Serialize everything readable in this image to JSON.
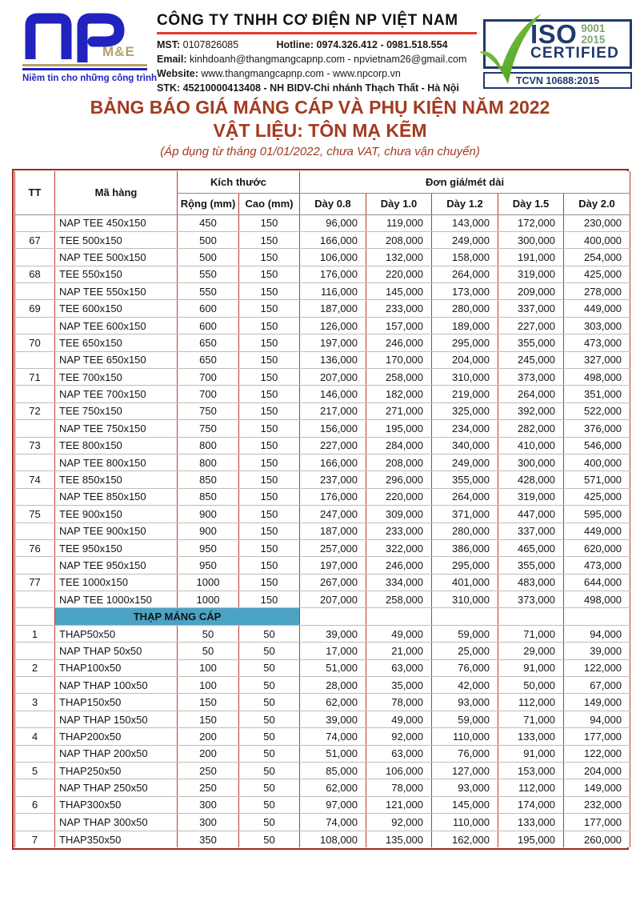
{
  "logo": {
    "monogram": "NP",
    "sub": "M&E",
    "slogan": "Niềm tin cho những công trình"
  },
  "company": {
    "name": "CÔNG TY TNHH CƠ ĐIỆN NP VIỆT NAM",
    "mst_label": "MST:",
    "mst_value": "0107826085",
    "hotline_label": "Hotline:",
    "hotline_value": "0974.326.412 - 0981.518.554",
    "email_label": "Email:",
    "email_value": "kinhdoanh@thangmangcapnp.com - npvietnam26@gmail.com",
    "website_label": "Website:",
    "website_value": "www.thangmangcapnp.com - www.npcorp.vn",
    "stk_label": "STK:",
    "stk_value": "45210000413408 - NH BIDV-Chi nhánh Thạch Thất - Hà Nội"
  },
  "iso_badge": {
    "iso": "ISO",
    "standard": "9001",
    "year": "2015",
    "certified": "CERTIFIED",
    "tcvn": "TCVN 10688:2015"
  },
  "title": {
    "line1": "BẢNG BÁO GIÁ MÁNG CÁP VÀ PHỤ KIỆN NĂM 2022",
    "line2": "VẬT LIỆU: TÔN MẠ KẼM",
    "note": "(Áp dụng từ tháng 01/01/2022, chưa VAT, chưa vận chuyển)"
  },
  "table": {
    "headers": {
      "tt": "TT",
      "code": "Mã hàng",
      "size_group": "Kích thước",
      "width": "Rộng (mm)",
      "height": "Cao (mm)",
      "price_group": "Đơn giá/mét dài",
      "thickness": [
        "Dày 0.8",
        "Dày 1.0",
        "Dày 1.2",
        "Dày 1.5",
        "Dày 2.0"
      ]
    },
    "rows": [
      [
        "",
        "NAP TEE 450x150",
        "450",
        "150",
        "96,000",
        "119,000",
        "143,000",
        "172,000",
        "230,000"
      ],
      [
        "67",
        "TEE 500x150",
        "500",
        "150",
        "166,000",
        "208,000",
        "249,000",
        "300,000",
        "400,000"
      ],
      [
        "",
        "NAP TEE 500x150",
        "500",
        "150",
        "106,000",
        "132,000",
        "158,000",
        "191,000",
        "254,000"
      ],
      [
        "68",
        "TEE 550x150",
        "550",
        "150",
        "176,000",
        "220,000",
        "264,000",
        "319,000",
        "425,000"
      ],
      [
        "",
        "NAP TEE 550x150",
        "550",
        "150",
        "116,000",
        "145,000",
        "173,000",
        "209,000",
        "278,000"
      ],
      [
        "69",
        "TEE 600x150",
        "600",
        "150",
        "187,000",
        "233,000",
        "280,000",
        "337,000",
        "449,000"
      ],
      [
        "",
        "NAP TEE 600x150",
        "600",
        "150",
        "126,000",
        "157,000",
        "189,000",
        "227,000",
        "303,000"
      ],
      [
        "70",
        "TEE 650x150",
        "650",
        "150",
        "197,000",
        "246,000",
        "295,000",
        "355,000",
        "473,000"
      ],
      [
        "",
        "NAP TEE 650x150",
        "650",
        "150",
        "136,000",
        "170,000",
        "204,000",
        "245,000",
        "327,000"
      ],
      [
        "71",
        "TEE 700x150",
        "700",
        "150",
        "207,000",
        "258,000",
        "310,000",
        "373,000",
        "498,000"
      ],
      [
        "",
        "NAP TEE 700x150",
        "700",
        "150",
        "146,000",
        "182,000",
        "219,000",
        "264,000",
        "351,000"
      ],
      [
        "72",
        "TEE 750x150",
        "750",
        "150",
        "217,000",
        "271,000",
        "325,000",
        "392,000",
        "522,000"
      ],
      [
        "",
        "NAP TEE 750x150",
        "750",
        "150",
        "156,000",
        "195,000",
        "234,000",
        "282,000",
        "376,000"
      ],
      [
        "73",
        "TEE 800x150",
        "800",
        "150",
        "227,000",
        "284,000",
        "340,000",
        "410,000",
        "546,000"
      ],
      [
        "",
        "NAP TEE 800x150",
        "800",
        "150",
        "166,000",
        "208,000",
        "249,000",
        "300,000",
        "400,000"
      ],
      [
        "74",
        "TEE 850x150",
        "850",
        "150",
        "237,000",
        "296,000",
        "355,000",
        "428,000",
        "571,000"
      ],
      [
        "",
        "NAP TEE 850x150",
        "850",
        "150",
        "176,000",
        "220,000",
        "264,000",
        "319,000",
        "425,000"
      ],
      [
        "75",
        "TEE 900x150",
        "900",
        "150",
        "247,000",
        "309,000",
        "371,000",
        "447,000",
        "595,000"
      ],
      [
        "",
        "NAP TEE 900x150",
        "900",
        "150",
        "187,000",
        "233,000",
        "280,000",
        "337,000",
        "449,000"
      ],
      [
        "76",
        "TEE 950x150",
        "950",
        "150",
        "257,000",
        "322,000",
        "386,000",
        "465,000",
        "620,000"
      ],
      [
        "",
        "NAP TEE 950x150",
        "950",
        "150",
        "197,000",
        "246,000",
        "295,000",
        "355,000",
        "473,000"
      ],
      [
        "77",
        "TEE 1000x150",
        "1000",
        "150",
        "267,000",
        "334,000",
        "401,000",
        "483,000",
        "644,000"
      ],
      [
        "",
        "NAP TEE 1000x150",
        "1000",
        "150",
        "207,000",
        "258,000",
        "310,000",
        "373,000",
        "498,000"
      ],
      {
        "section": "THẠP MÁNG CÁP"
      },
      [
        "1",
        "THAP50x50",
        "50",
        "50",
        "39,000",
        "49,000",
        "59,000",
        "71,000",
        "94,000"
      ],
      [
        "",
        "NAP THAP 50x50",
        "50",
        "50",
        "17,000",
        "21,000",
        "25,000",
        "29,000",
        "39,000"
      ],
      [
        "2",
        "THAP100x50",
        "100",
        "50",
        "51,000",
        "63,000",
        "76,000",
        "91,000",
        "122,000"
      ],
      [
        "",
        "NAP THAP 100x50",
        "100",
        "50",
        "28,000",
        "35,000",
        "42,000",
        "50,000",
        "67,000"
      ],
      [
        "3",
        "THAP150x50",
        "150",
        "50",
        "62,000",
        "78,000",
        "93,000",
        "112,000",
        "149,000"
      ],
      [
        "",
        "NAP THAP 150x50",
        "150",
        "50",
        "39,000",
        "49,000",
        "59,000",
        "71,000",
        "94,000"
      ],
      [
        "4",
        "THAP200x50",
        "200",
        "50",
        "74,000",
        "92,000",
        "110,000",
        "133,000",
        "177,000"
      ],
      [
        "",
        "NAP THAP 200x50",
        "200",
        "50",
        "51,000",
        "63,000",
        "76,000",
        "91,000",
        "122,000"
      ],
      [
        "5",
        "THAP250x50",
        "250",
        "50",
        "85,000",
        "106,000",
        "127,000",
        "153,000",
        "204,000"
      ],
      [
        "",
        "NAP THAP 250x50",
        "250",
        "50",
        "62,000",
        "78,000",
        "93,000",
        "112,000",
        "149,000"
      ],
      [
        "6",
        "THAP300x50",
        "300",
        "50",
        "97,000",
        "121,000",
        "145,000",
        "174,000",
        "232,000"
      ],
      [
        "",
        "NAP THAP 300x50",
        "300",
        "50",
        "74,000",
        "92,000",
        "110,000",
        "133,000",
        "177,000"
      ],
      [
        "7",
        "THAP350x50",
        "350",
        "50",
        "108,000",
        "135,000",
        "162,000",
        "195,000",
        "260,000"
      ]
    ]
  },
  "colors": {
    "title_red": "#A33B20",
    "border_red": "#BE3A2F",
    "border_dark_red": "#9B2B1F",
    "row_line": "#C7B9B4",
    "section_teal": "#4BA3C4",
    "logo_blue": "#2222BE",
    "logo_gold": "#B5A26B",
    "rule_red": "#E8392E",
    "iso_navy": "#203A6B",
    "check_green": "#55B12E",
    "iso_green": "#7FA473"
  }
}
